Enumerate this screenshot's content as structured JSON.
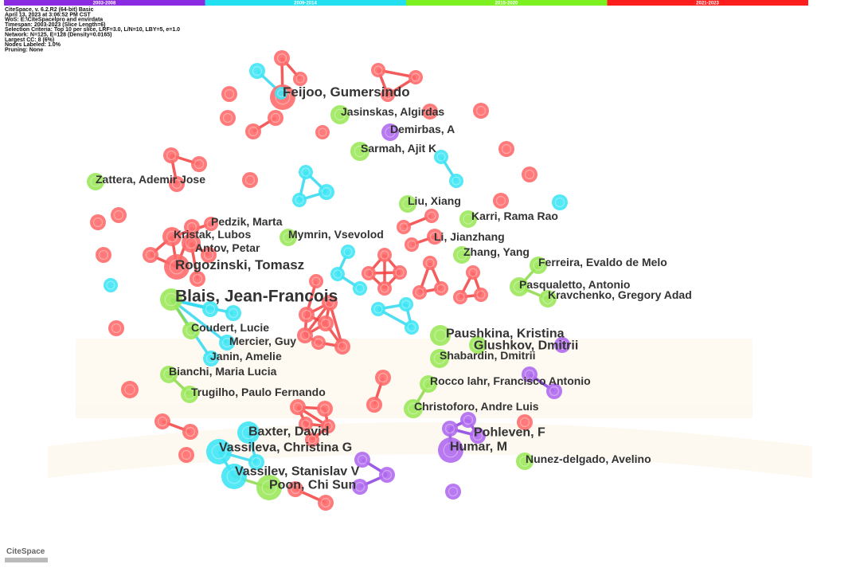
{
  "timeline": [
    "2003-2008",
    "2009-2014",
    "2015-2020",
    "2021-2023"
  ],
  "header": [
    "CiteSpace, v. 6.2.R2 (64-bit) Basic",
    "April 13, 2023 at 3:06:52 PM CST",
    "WoS: E:\\CiteSpacelpro and envirdata",
    "Timespan: 2003-2023 (Slice Length=6)",
    "Selection Criteria: Top 10 per slice, LRF=3.0, L/N=10, LBY=5, e=1.0",
    "Network: N=125, E=128 (Density=0.0165)",
    "Largest CC: 8 (6%)",
    "Nodes Labeled: 1.0%",
    "Pruning: None"
  ],
  "nodes": [
    "Feijoo, Gumersindo",
    "Jasinskas, Algirdas",
    "Demirbas, A",
    "Sarmah, Ajit K",
    "Zattera, Ademir Jose",
    "Liu, Xiang",
    "Karri, Rama Rao",
    "Pedzik, Marta",
    "Kristak, Lubos",
    "Mymrin, Vsevolod",
    "Li, Jianzhang",
    "Antov, Petar",
    "Zhang, Yang",
    "Rogozinski, Tomasz",
    "Ferreira, Evaldo de Melo",
    "Pasqualetto, Antonio",
    "Blais, Jean-Francois",
    "Kravchenko, Gregory Adad",
    "Coudert, Lucie",
    "Paushkina, Kristina",
    "Mercier, Guy",
    "Glushkov, Dmitrii",
    "Janin, Amelie",
    "Shabardin, Dmitrii",
    "Bianchi, Maria Lucia",
    "Rocco lahr, Francisco Antonio",
    "Trugilho, Paulo Fernando",
    "Christoforo, Andre Luis",
    "Baxter, David",
    "Pohleven, F",
    "Vassileva, Christina G",
    "Humar, M",
    "Nunez-delgado, Avelino",
    "Vassilev, Stanislav V",
    "Poon, Chi Sun"
  ],
  "logo": "CiteSpace"
}
